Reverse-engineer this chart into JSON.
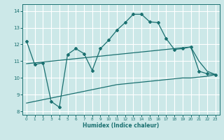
{
  "xlabel": "Humidex (Indice chaleur)",
  "bg_color": "#cce8e8",
  "grid_color": "#ffffff",
  "line_color": "#1a7070",
  "xlim": [
    -0.5,
    23.5
  ],
  "ylim": [
    7.8,
    14.4
  ],
  "yticks": [
    8,
    9,
    10,
    11,
    12,
    13,
    14
  ],
  "xticks": [
    0,
    1,
    2,
    3,
    4,
    5,
    6,
    7,
    8,
    9,
    10,
    11,
    12,
    13,
    14,
    15,
    16,
    17,
    18,
    19,
    20,
    21,
    22,
    23
  ],
  "line1_x": [
    0,
    1,
    2,
    3,
    4,
    5,
    6,
    7,
    8,
    9,
    10,
    11,
    12,
    13,
    14,
    15,
    16,
    17,
    18,
    19,
    20,
    21,
    22,
    23
  ],
  "line1_y": [
    12.2,
    10.8,
    10.9,
    8.6,
    8.25,
    11.4,
    11.75,
    11.45,
    10.45,
    11.75,
    12.25,
    12.85,
    13.3,
    13.8,
    13.8,
    13.35,
    13.3,
    12.35,
    11.7,
    11.75,
    11.85,
    10.4,
    10.25,
    10.2
  ],
  "line2_x": [
    0,
    1,
    2,
    3,
    4,
    5,
    6,
    7,
    8,
    9,
    10,
    11,
    12,
    13,
    14,
    15,
    16,
    17,
    18,
    19,
    20,
    21,
    22,
    23
  ],
  "line2_y": [
    10.85,
    10.9,
    10.95,
    11.0,
    11.05,
    11.1,
    11.15,
    11.2,
    11.25,
    11.3,
    11.35,
    11.4,
    11.45,
    11.5,
    11.55,
    11.6,
    11.65,
    11.7,
    11.75,
    11.8,
    11.85,
    11.0,
    10.4,
    10.2
  ],
  "line3_x": [
    0,
    1,
    2,
    3,
    4,
    5,
    6,
    7,
    8,
    9,
    10,
    11,
    12,
    13,
    14,
    15,
    16,
    17,
    18,
    19,
    20,
    21,
    22,
    23
  ],
  "line3_y": [
    8.5,
    8.6,
    8.7,
    8.8,
    8.9,
    9.0,
    9.1,
    9.2,
    9.3,
    9.4,
    9.5,
    9.6,
    9.65,
    9.7,
    9.75,
    9.8,
    9.85,
    9.9,
    9.95,
    10.0,
    10.0,
    10.05,
    10.1,
    10.2
  ]
}
